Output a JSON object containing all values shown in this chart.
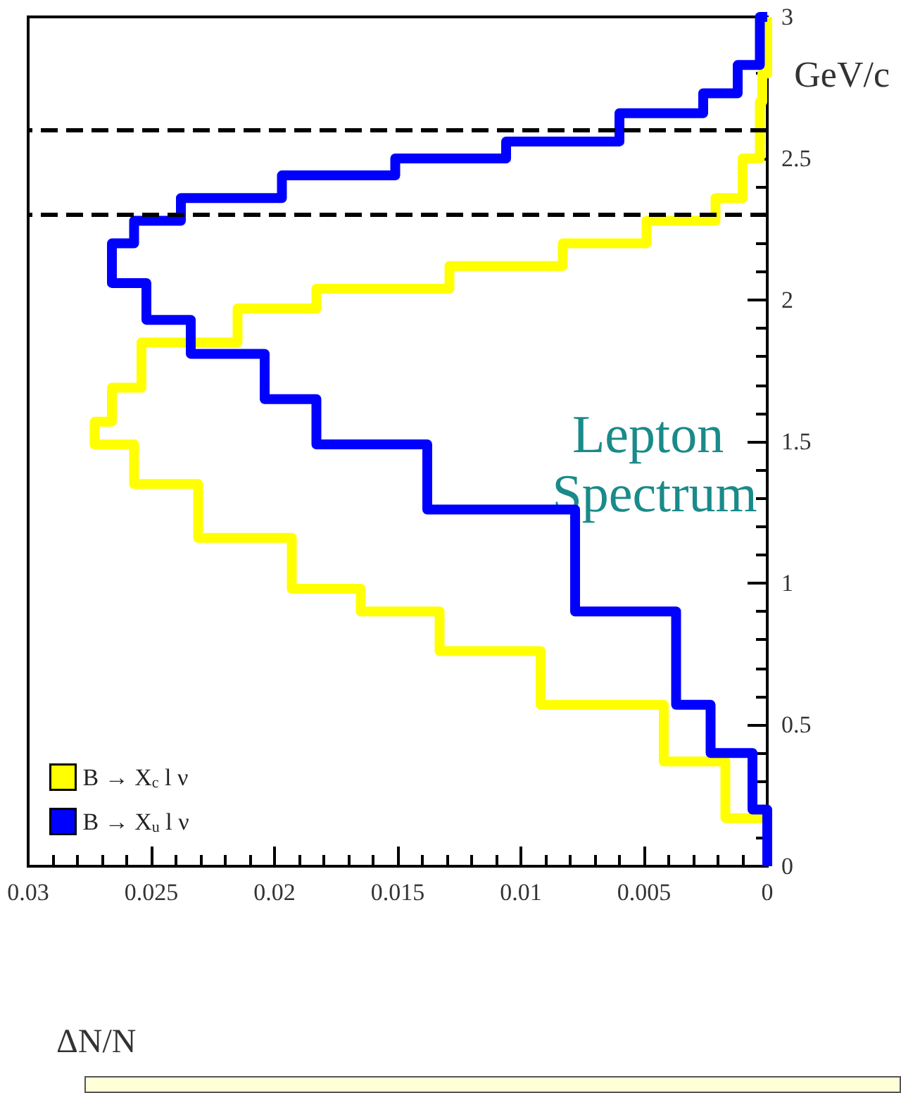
{
  "chart_data": {
    "type": "step",
    "xlabel": "ΔN/N",
    "ylabel": "GeV/c",
    "annotations": [
      "Lepton Spectrum"
    ],
    "xlim": [
      0.03,
      0
    ],
    "xticks": [
      0,
      0.005,
      0.01,
      0.015,
      0.02,
      0.025,
      0.03
    ],
    "ylim": [
      0,
      3
    ],
    "yticks": [
      0,
      0.5,
      1,
      1.5,
      2,
      2.5,
      3
    ],
    "grid": false,
    "legend": "bottom left",
    "marker": "none",
    "ref_lines": [
      {
        "axis": "y",
        "value": 2.3,
        "color": "#000000",
        "line_style": "dashed"
      },
      {
        "axis": "y",
        "value": 2.6,
        "color": "#000000",
        "line_style": "dashed"
      }
    ],
    "series": [
      {
        "name": "B → X$_{c}$ l ν",
        "color": "#ffff00",
        "x": [
          0,
          0.0017,
          0.0042,
          0.0092,
          0.0133,
          0.0165,
          0.0193,
          0.0231,
          0.0257,
          0.0273,
          0.0266,
          0.0254,
          0.0215,
          0.0183,
          0.0129,
          0.0083,
          0.0049,
          0.0021,
          0.001,
          0.0003,
          0.0002,
          0,
          0
        ],
        "values": [
          0,
          0.17,
          0.37,
          0.57,
          0.76,
          0.9,
          0.98,
          1.16,
          1.35,
          1.49,
          1.57,
          1.69,
          1.85,
          1.97,
          2.04,
          2.12,
          2.2,
          2.28,
          2.36,
          2.5,
          2.7,
          2.8,
          3
        ]
      },
      {
        "name": "B → X$_{u}$ l ν",
        "color": "#0000ff",
        "x": [
          0,
          0.0006,
          0.0023,
          0.0037,
          0.0078,
          0.0138,
          0.0183,
          0.0204,
          0.0234,
          0.0252,
          0.0266,
          0.0257,
          0.0238,
          0.0197,
          0.0151,
          0.0106,
          0.006,
          0.0026,
          0.0012,
          0.0003,
          0
        ],
        "values": [
          0,
          0.2,
          0.4,
          0.57,
          0.9,
          1.26,
          1.49,
          1.65,
          1.81,
          1.93,
          2.06,
          2.2,
          2.28,
          2.36,
          2.44,
          2.5,
          2.56,
          2.66,
          2.73,
          2.83,
          3
        ]
      }
    ]
  }
}
